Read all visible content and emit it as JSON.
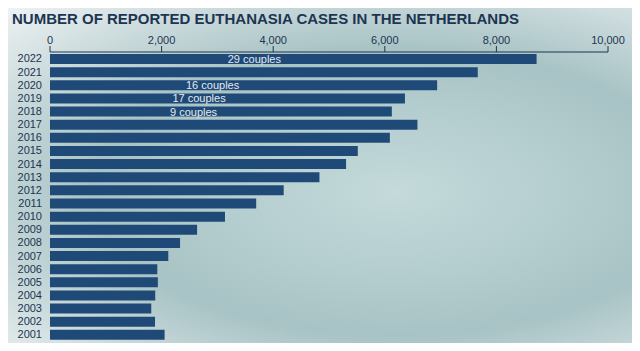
{
  "chart_data": {
    "type": "bar",
    "title": "NUMBER OF REPORTED EUTHANASIA CASES IN THE NETHERLANDS",
    "orientation": "horizontal",
    "categories": [
      "2022",
      "2021",
      "2020",
      "2019",
      "2018",
      "2017",
      "2016",
      "2015",
      "2014",
      "2013",
      "2012",
      "2011",
      "2010",
      "2009",
      "2008",
      "2007",
      "2006",
      "2005",
      "2004",
      "2003",
      "2002",
      "2001"
    ],
    "values": [
      8720,
      7666,
      6938,
      6361,
      6126,
      6585,
      6091,
      5516,
      5306,
      4829,
      4188,
      3695,
      3136,
      2636,
      2331,
      2120,
      1923,
      1933,
      1886,
      1815,
      1882,
      2054
    ],
    "color": "#1f4a78",
    "xlim": [
      0,
      10000
    ],
    "xticks": [
      0,
      {
        "value": 2000,
        "label": "2,000"
      },
      {
        "value": 4000,
        "label": "4,000"
      },
      {
        "value": 6000,
        "label": "6,000"
      },
      {
        "value": 8000,
        "label": "8,000"
      },
      {
        "value": 10000,
        "label": "10,000"
      }
    ],
    "annotations": [
      {
        "category": "2022",
        "text": "29 couples"
      },
      {
        "category": "2020",
        "text": "16 couples"
      },
      {
        "category": "2019",
        "text": "17 couples"
      },
      {
        "category": "2018",
        "text": "9 couples"
      }
    ],
    "grid": false
  }
}
